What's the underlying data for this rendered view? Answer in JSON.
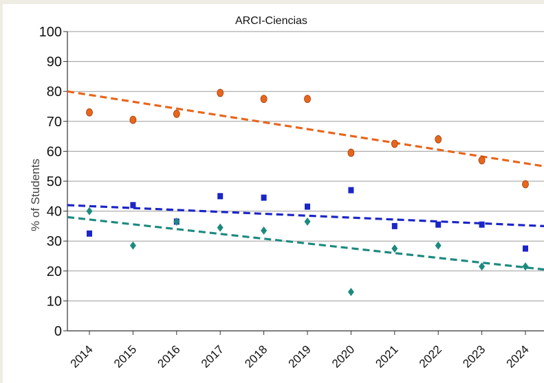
{
  "chart_data": {
    "type": "scatter",
    "title": "ARCI-Ciencias",
    "xlabel": "",
    "ylabel": "% of Students",
    "categories": [
      "2014",
      "2015",
      "2016",
      "2017",
      "2018",
      "2019",
      "2020",
      "2021",
      "2022",
      "2023",
      "2024"
    ],
    "ylim": [
      0,
      100
    ],
    "yticks": [
      0,
      10,
      20,
      30,
      40,
      50,
      60,
      70,
      80,
      90,
      100
    ],
    "grid": true,
    "series": [
      {
        "values": [
          73,
          70.5,
          72.5,
          79.5,
          77.5,
          77.5,
          59.5,
          62.5,
          64,
          57,
          49
        ],
        "marker": "circle",
        "color": "#e8661c",
        "trend": [
          80,
          55
        ]
      },
      {
        "values": [
          32.5,
          42,
          36.5,
          45,
          44.5,
          41.5,
          47,
          35,
          35.5,
          35.5,
          27.5
        ],
        "marker": "square",
        "color": "#1b25c8",
        "trend": [
          42,
          35
        ]
      },
      {
        "values": [
          40,
          28.5,
          36.5,
          34.5,
          33.5,
          36.5,
          13,
          27.5,
          28.5,
          21.5,
          21.5
        ],
        "marker": "diamond",
        "color": "#1d8a7f",
        "trend": [
          38,
          20.5
        ]
      }
    ]
  }
}
